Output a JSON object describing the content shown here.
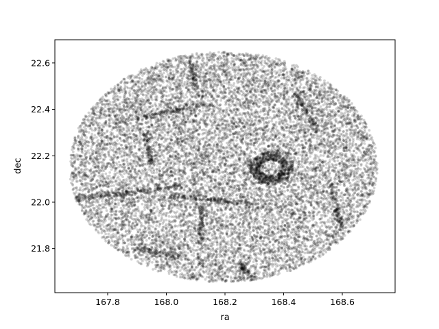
{
  "chart_data": {
    "type": "scatter",
    "xlabel": "ra",
    "ylabel": "dec",
    "xlim": [
      167.62,
      168.78
    ],
    "ylim": [
      21.61,
      22.7
    ],
    "xticks": [
      "167.8",
      "168.0",
      "168.2",
      "168.4",
      "168.6"
    ],
    "yticks": [
      "21.8",
      "22.0",
      "22.2",
      "22.4",
      "22.6"
    ],
    "grid": false,
    "legend": "none",
    "point_color": "#000000",
    "point_alpha": 0.18,
    "series": [
      {
        "field": {
          "shape": "ellipse",
          "center": [
            168.195,
            22.152
          ],
          "radius_ra": 0.525,
          "radius_dec": 0.497,
          "n_points": 14000
        },
        "ring_overdensity": {
          "center": [
            168.357,
            22.148
          ],
          "inner_radius": 0.035,
          "outer_radius": 0.075,
          "n_points": 700
        },
        "filaments": [
          {
            "from": [
              167.68,
              22.01
            ],
            "to": [
              168.05,
              22.07
            ],
            "n_points": 220
          },
          {
            "from": [
              168.02,
              22.03
            ],
            "to": [
              168.3,
              21.99
            ],
            "n_points": 200
          },
          {
            "from": [
              167.88,
              22.36
            ],
            "to": [
              168.15,
              22.42
            ],
            "n_points": 160
          },
          {
            "from": [
              168.12,
              21.98
            ],
            "to": [
              168.12,
              21.82
            ],
            "n_points": 120
          },
          {
            "from": [
              168.56,
              22.08
            ],
            "to": [
              168.6,
              21.88
            ],
            "n_points": 150
          },
          {
            "from": [
              168.44,
              22.47
            ],
            "to": [
              168.52,
              22.3
            ],
            "n_points": 130
          },
          {
            "from": [
              167.93,
              22.3
            ],
            "to": [
              167.95,
              22.16
            ],
            "n_points": 110
          },
          {
            "from": [
              168.08,
              22.62
            ],
            "to": [
              168.1,
              22.48
            ],
            "n_points": 90
          },
          {
            "from": [
              168.25,
              21.74
            ],
            "to": [
              168.3,
              21.66
            ],
            "n_points": 80
          },
          {
            "from": [
              167.9,
              21.8
            ],
            "to": [
              168.06,
              21.76
            ],
            "n_points": 110
          }
        ]
      }
    ]
  }
}
